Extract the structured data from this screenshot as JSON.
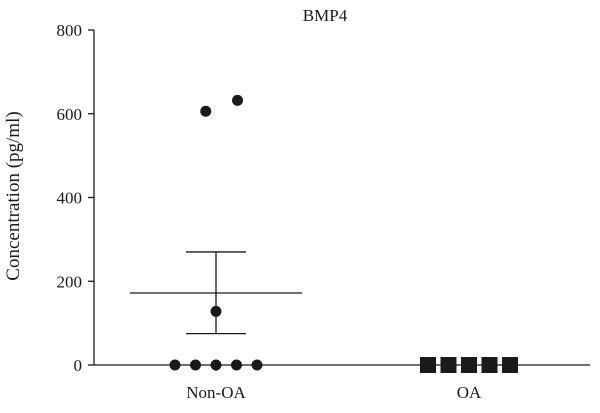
{
  "chart_data": {
    "type": "scatter",
    "title": "BMP4",
    "xlabel": "",
    "ylabel": "Concentration (pg/ml)",
    "categories": [
      "Non-OA",
      "OA"
    ],
    "ylim": [
      0,
      800
    ],
    "yticks": [
      0,
      200,
      400,
      600,
      800
    ],
    "grid": false,
    "series": [
      {
        "category": "Non-OA",
        "marker": "circle",
        "points": [
          {
            "x": -2,
            "y": 0
          },
          {
            "x": -1,
            "y": 0
          },
          {
            "x": 0,
            "y": 0
          },
          {
            "x": 1,
            "y": 0
          },
          {
            "x": 2,
            "y": 0
          },
          {
            "x": 0,
            "y": 128
          },
          {
            "x": -0.5,
            "y": 606
          },
          {
            "x": 1.05,
            "y": 632
          }
        ],
        "mean": 172,
        "error_low": 75,
        "error_high": 270
      },
      {
        "category": "OA",
        "marker": "square",
        "points": [
          {
            "x": -2,
            "y": 0
          },
          {
            "x": -1,
            "y": 0
          },
          {
            "x": 0,
            "y": 0
          },
          {
            "x": 1,
            "y": 0
          },
          {
            "x": 2,
            "y": 0
          }
        ],
        "mean": 0,
        "error_low": 0,
        "error_high": 0
      }
    ],
    "color": "#1a1a1a"
  }
}
